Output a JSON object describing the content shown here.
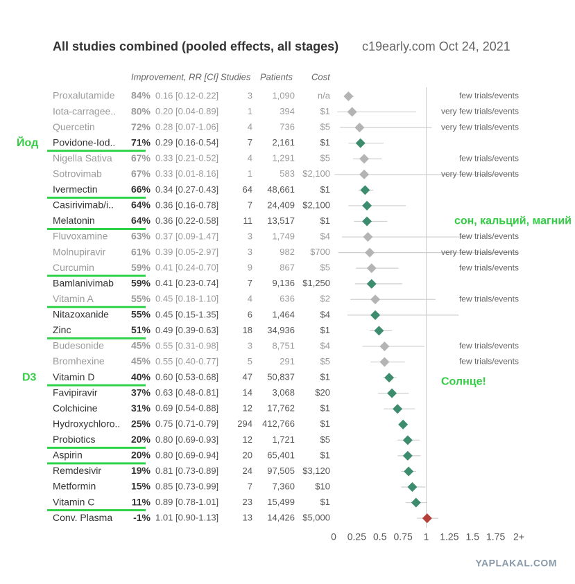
{
  "chart_data": {
    "type": "forest",
    "title": "All studies combined (pooled effects, all stages)",
    "source": "c19early.com Oct 24, 2021",
    "columns": {
      "improvement": "Improvement, RR [CI]",
      "studies": "Studies",
      "patients": "Patients",
      "cost": "Cost"
    },
    "categories": [
      "Proxalutamide",
      "Iota-carragee..",
      "Quercetin",
      "Povidone-Iod..",
      "Nigella Sativa",
      "Sotrovimab",
      "Ivermectin",
      "Casirivimab/i..",
      "Melatonin",
      "Fluvoxamine",
      "Molnupiravir",
      "Curcumin",
      "Bamlanivimab",
      "Vitamin A",
      "Nitazoxanide",
      "Zinc",
      "Budesonide",
      "Bromhexine",
      "Vitamin D",
      "Favipiravir",
      "Colchicine",
      "Hydroxychloro..",
      "Probiotics",
      "Aspirin",
      "Remdesivir",
      "Metformin",
      "Vitamin C",
      "Conv. Plasma"
    ],
    "improvement": [
      "84%",
      "80%",
      "72%",
      "71%",
      "67%",
      "67%",
      "66%",
      "64%",
      "64%",
      "63%",
      "61%",
      "59%",
      "59%",
      "55%",
      "55%",
      "51%",
      "45%",
      "45%",
      "40%",
      "37%",
      "31%",
      "25%",
      "20%",
      "20%",
      "19%",
      "15%",
      "11%",
      "-1%"
    ],
    "values": [
      0.16,
      0.2,
      0.28,
      0.29,
      0.33,
      0.33,
      0.34,
      0.36,
      0.36,
      0.37,
      0.39,
      0.41,
      0.41,
      0.45,
      0.45,
      0.49,
      0.55,
      0.55,
      0.6,
      0.63,
      0.69,
      0.75,
      0.8,
      0.8,
      0.81,
      0.85,
      0.89,
      1.01
    ],
    "value_labels": [
      "0.16",
      "0.20",
      "0.28",
      "0.29",
      "0.33",
      "0.33",
      "0.34",
      "0.36",
      "0.36",
      "0.37",
      "0.39",
      "0.41",
      "0.41",
      "0.45",
      "0.45",
      "0.49",
      "0.55",
      "0.55",
      "0.60",
      "0.63",
      "0.69",
      "0.75",
      "0.80",
      "0.80",
      "0.81",
      "0.85",
      "0.89",
      "1.01"
    ],
    "ci_low": [
      0.12,
      0.04,
      0.07,
      0.16,
      0.21,
      0.01,
      0.27,
      0.16,
      0.22,
      0.09,
      0.05,
      0.24,
      0.23,
      0.18,
      0.15,
      0.39,
      0.31,
      0.4,
      0.53,
      0.48,
      0.54,
      0.71,
      0.69,
      0.69,
      0.73,
      0.73,
      0.78,
      0.9
    ],
    "ci_high": [
      0.22,
      0.89,
      1.06,
      0.54,
      0.52,
      8.16,
      0.43,
      0.78,
      0.58,
      1.47,
      2.97,
      0.7,
      0.74,
      1.1,
      1.35,
      0.63,
      0.98,
      0.77,
      0.68,
      0.81,
      0.88,
      0.79,
      0.93,
      0.94,
      0.89,
      0.99,
      1.01,
      1.13
    ],
    "ci_labels": [
      "[0.12-0.22]",
      "[0.04-0.89]",
      "[0.07-1.06]",
      "[0.16-0.54]",
      "[0.21-0.52]",
      "[0.01-8.16]",
      "[0.27-0.43]",
      "[0.16-0.78]",
      "[0.22-0.58]",
      "[0.09-1.47]",
      "[0.05-2.97]",
      "[0.24-0.70]",
      "[0.23-0.74]",
      "[0.18-1.10]",
      "[0.15-1.35]",
      "[0.39-0.63]",
      "[0.31-0.98]",
      "[0.40-0.77]",
      "[0.53-0.68]",
      "[0.48-0.81]",
      "[0.54-0.88]",
      "[0.71-0.79]",
      "[0.69-0.93]",
      "[0.69-0.94]",
      "[0.73-0.89]",
      "[0.73-0.99]",
      "[0.78-1.01]",
      "[0.90-1.13]"
    ],
    "studies": [
      3,
      1,
      4,
      7,
      4,
      1,
      64,
      7,
      11,
      3,
      3,
      9,
      7,
      4,
      6,
      18,
      3,
      5,
      47,
      14,
      12,
      294,
      12,
      20,
      24,
      7,
      23,
      13
    ],
    "patients": [
      "1,090",
      "394",
      "736",
      "2,161",
      "1,291",
      "583",
      "48,661",
      "24,409",
      "13,517",
      "1,749",
      "982",
      "867",
      "9,136",
      "636",
      "1,464",
      "34,936",
      "8,751",
      "291",
      "50,837",
      "3,068",
      "17,762",
      "412,766",
      "1,721",
      "65,401",
      "97,505",
      "7,360",
      "15,499",
      "14,426"
    ],
    "cost": [
      "n/a",
      "$1",
      "$5",
      "$1",
      "$5",
      "$2,100",
      "$1",
      "$2,100",
      "$1",
      "$4",
      "$700",
      "$5",
      "$1,250",
      "$2",
      "$4",
      "$1",
      "$4",
      "$5",
      "$1",
      "$20",
      "$1",
      "$1",
      "$5",
      "$1",
      "$3,120",
      "$10",
      "$1",
      "$5,000"
    ],
    "notes": [
      "few trials/events",
      "very few trials/events",
      "very few trials/events",
      null,
      "few trials/events",
      "very few trials/events",
      null,
      null,
      null,
      "few trials/events",
      "very few trials/events",
      "few trials/events",
      null,
      "few trials/events",
      null,
      null,
      "few trials/events",
      "few trials/events",
      null,
      null,
      null,
      null,
      null,
      null,
      null,
      null,
      null,
      null
    ],
    "marker_colors": [
      "#b4b4b4",
      "#b4b4b4",
      "#b4b4b4",
      "#3d8c6e",
      "#b4b4b4",
      "#b4b4b4",
      "#3d8c6e",
      "#3d8c6e",
      "#3d8c6e",
      "#b4b4b4",
      "#b4b4b4",
      "#b4b4b4",
      "#3d8c6e",
      "#b4b4b4",
      "#3d8c6e",
      "#3d8c6e",
      "#b4b4b4",
      "#b4b4b4",
      "#3d8c6e",
      "#3d8c6e",
      "#3d8c6e",
      "#3d8c6e",
      "#3d8c6e",
      "#3d8c6e",
      "#3d8c6e",
      "#3d8c6e",
      "#3d8c6e",
      "#b5403a"
    ],
    "muted_color": "#b4b4b4",
    "underlined": [
      false,
      false,
      false,
      true,
      false,
      false,
      true,
      false,
      true,
      false,
      false,
      true,
      false,
      true,
      false,
      true,
      false,
      false,
      true,
      false,
      false,
      false,
      true,
      true,
      false,
      false,
      true,
      false
    ],
    "underline_color": "#2fd34a",
    "xlim": [
      0,
      2
    ],
    "xticks": [
      0,
      0.25,
      0.5,
      0.75,
      1,
      1.25,
      1.5,
      1.75,
      {
        "value": 2,
        "label": "2+"
      }
    ],
    "reference_line": 1,
    "annotations": [
      {
        "text": "Йод",
        "row": "Povidone-Iod.."
      },
      {
        "text": "сон, кальций, магний",
        "row": "Melatonin"
      },
      {
        "text": "D3",
        "row": "Vitamin D"
      },
      {
        "text": "Солнце!",
        "row": "Vitamin D"
      }
    ],
    "watermark": "YAPLAKAL.COM"
  }
}
